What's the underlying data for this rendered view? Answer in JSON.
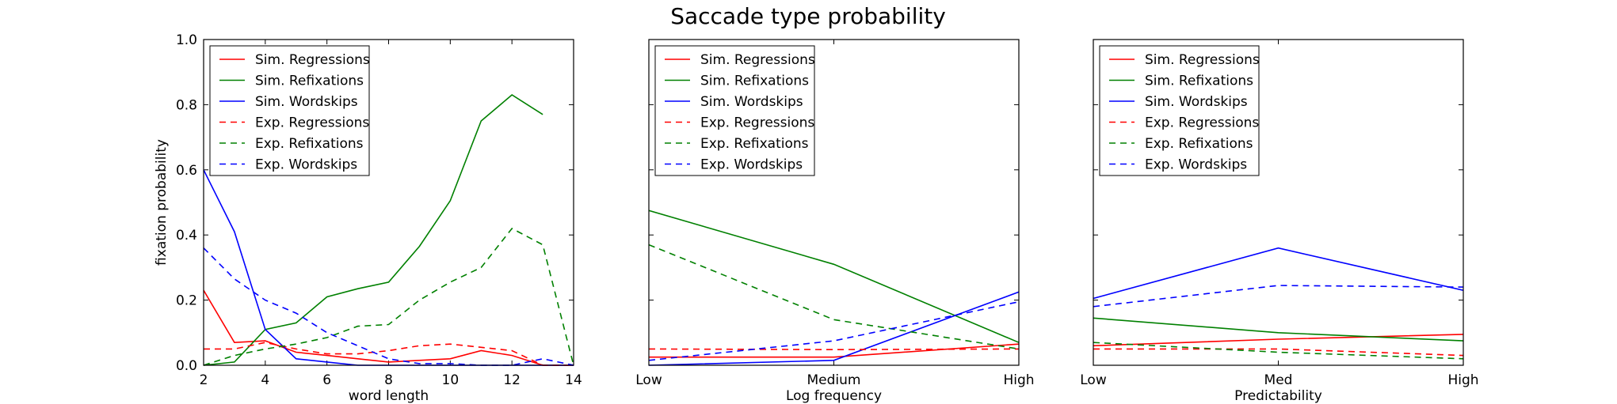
{
  "figure": {
    "title": "Saccade type probability"
  },
  "chart_data": [
    {
      "type": "line",
      "xlabel": "word length",
      "ylabel": "fixation probability",
      "xlim": [
        2,
        14
      ],
      "ylim": [
        0,
        1.0
      ],
      "x_ticks": [
        2,
        4,
        6,
        8,
        10,
        12,
        14
      ],
      "x_tick_labels": [
        "2",
        "4",
        "6",
        "8",
        "10",
        "12",
        "14"
      ],
      "y_ticks": [
        0,
        0.2,
        0.4,
        0.6,
        0.8,
        1.0
      ],
      "y_tick_labels": [
        "0.0",
        "0.2",
        "0.4",
        "0.6",
        "0.8",
        "1.0"
      ],
      "legend_position": "top-left",
      "series": [
        {
          "name": "Sim. Regressions",
          "color": "#ff0000",
          "dash": "solid",
          "x": [
            2,
            3,
            4,
            5,
            6,
            7,
            8,
            9,
            10,
            11,
            12,
            13,
            14
          ],
          "y": [
            0.23,
            0.07,
            0.075,
            0.04,
            0.03,
            0.02,
            0.01,
            0.015,
            0.02,
            0.045,
            0.03,
            0.0,
            0.0
          ]
        },
        {
          "name": "Sim. Refixations",
          "color": "#008000",
          "dash": "solid",
          "x": [
            2,
            3,
            4,
            5,
            6,
            7,
            8,
            9,
            10,
            11,
            12,
            13
          ],
          "y": [
            0.0,
            0.01,
            0.11,
            0.13,
            0.21,
            0.235,
            0.255,
            0.365,
            0.505,
            0.75,
            0.83,
            0.77
          ]
        },
        {
          "name": "Sim. Wordskips",
          "color": "#0000ff",
          "dash": "solid",
          "x": [
            2,
            3,
            4,
            5,
            6,
            7,
            8,
            9,
            10,
            11,
            12,
            13,
            14
          ],
          "y": [
            0.6,
            0.41,
            0.11,
            0.02,
            0.01,
            0.0,
            0.0,
            0.0,
            0.0,
            0.0,
            0.0,
            0.0,
            0.0
          ]
        },
        {
          "name": "Exp. Regressions",
          "color": "#ff0000",
          "dash": "dashed",
          "x": [
            2,
            3,
            4,
            5,
            6,
            7,
            8,
            9,
            10,
            11,
            12,
            13,
            14
          ],
          "y": [
            0.05,
            0.05,
            0.07,
            0.05,
            0.035,
            0.035,
            0.045,
            0.06,
            0.065,
            0.055,
            0.045,
            0.0,
            0.0
          ]
        },
        {
          "name": "Exp. Refixations",
          "color": "#008000",
          "dash": "dashed",
          "x": [
            2,
            3,
            4,
            5,
            6,
            7,
            8,
            9,
            10,
            11,
            12,
            13,
            14
          ],
          "y": [
            0.0,
            0.03,
            0.05,
            0.065,
            0.085,
            0.12,
            0.125,
            0.2,
            0.255,
            0.3,
            0.42,
            0.37,
            0.0
          ]
        },
        {
          "name": "Exp. Wordskips",
          "color": "#0000ff",
          "dash": "dashed",
          "x": [
            2,
            3,
            4,
            5,
            6,
            7,
            8,
            9,
            10,
            11,
            12,
            13,
            14
          ],
          "y": [
            0.36,
            0.265,
            0.2,
            0.16,
            0.1,
            0.06,
            0.02,
            0.005,
            0.005,
            0.0,
            0.0,
            0.02,
            0.0
          ]
        }
      ]
    },
    {
      "type": "line",
      "xlabel": "Log frequency",
      "ylabel": "",
      "categories": [
        "Low",
        "Medium",
        "High"
      ],
      "ylim": [
        0,
        1.0
      ],
      "y_ticks": [
        0,
        0.2,
        0.4,
        0.6,
        0.8,
        1.0
      ],
      "legend_position": "top-left",
      "series": [
        {
          "name": "Sim. Regressions",
          "color": "#ff0000",
          "dash": "solid",
          "values": [
            0.025,
            0.025,
            0.065
          ]
        },
        {
          "name": "Sim. Refixations",
          "color": "#008000",
          "dash": "solid",
          "values": [
            0.475,
            0.31,
            0.07
          ]
        },
        {
          "name": "Sim. Wordskips",
          "color": "#0000ff",
          "dash": "solid",
          "values": [
            0.0,
            0.015,
            0.225
          ]
        },
        {
          "name": "Exp. Regressions",
          "color": "#ff0000",
          "dash": "dashed",
          "values": [
            0.05,
            0.048,
            0.05
          ]
        },
        {
          "name": "Exp. Refixations",
          "color": "#008000",
          "dash": "dashed",
          "values": [
            0.37,
            0.14,
            0.05
          ]
        },
        {
          "name": "Exp. Wordskips",
          "color": "#0000ff",
          "dash": "dashed",
          "values": [
            0.015,
            0.075,
            0.195
          ]
        }
      ]
    },
    {
      "type": "line",
      "xlabel": "Predictability",
      "ylabel": "",
      "categories": [
        "Low",
        "Med",
        "High"
      ],
      "ylim": [
        0,
        1.0
      ],
      "y_ticks": [
        0,
        0.2,
        0.4,
        0.6,
        0.8,
        1.0
      ],
      "legend_position": "top-left",
      "series": [
        {
          "name": "Sim. Regressions",
          "color": "#ff0000",
          "dash": "solid",
          "values": [
            0.06,
            0.08,
            0.095
          ]
        },
        {
          "name": "Sim. Refixations",
          "color": "#008000",
          "dash": "solid",
          "values": [
            0.145,
            0.1,
            0.075
          ]
        },
        {
          "name": "Sim. Wordskips",
          "color": "#0000ff",
          "dash": "solid",
          "values": [
            0.205,
            0.36,
            0.23
          ]
        },
        {
          "name": "Exp. Regressions",
          "color": "#ff0000",
          "dash": "dashed",
          "values": [
            0.05,
            0.05,
            0.03
          ]
        },
        {
          "name": "Exp. Refixations",
          "color": "#008000",
          "dash": "dashed",
          "values": [
            0.07,
            0.04,
            0.02
          ]
        },
        {
          "name": "Exp. Wordskips",
          "color": "#0000ff",
          "dash": "dashed",
          "values": [
            0.18,
            0.245,
            0.24
          ]
        }
      ]
    }
  ]
}
